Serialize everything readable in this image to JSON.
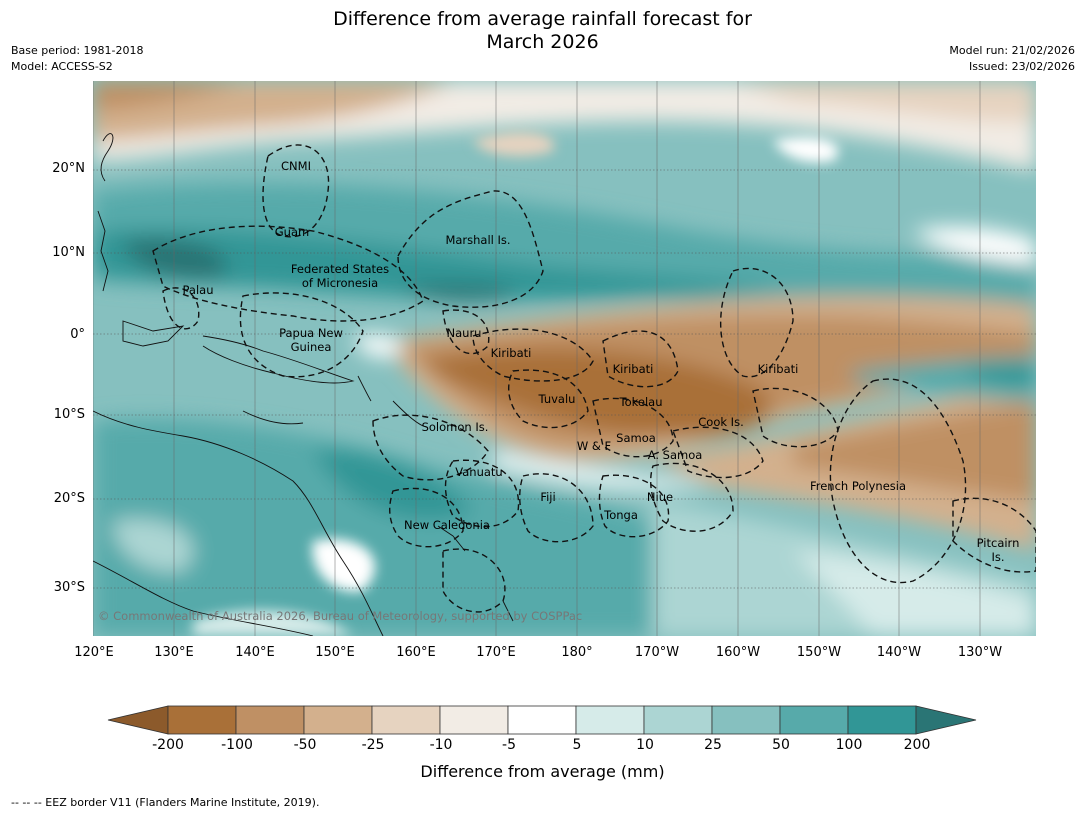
{
  "title_line1": "Difference from average rainfall forecast for",
  "title_line2": "March 2026",
  "meta_left": [
    "Base period: 1981-2018",
    "Model: ACCESS-S2"
  ],
  "meta_right": [
    "Model run: 21/02/2026",
    "Issued: 23/02/2026"
  ],
  "lat_labels": [
    "20°N",
    "10°N",
    "0°",
    "10°S",
    "20°S",
    "30°S"
  ],
  "lon_labels": [
    "120°E",
    "130°E",
    "140°E",
    "150°E",
    "160°E",
    "170°E",
    "180°",
    "170°W",
    "160°W",
    "150°W",
    "140°W",
    "130°W"
  ],
  "places": [
    "CNMI",
    "Guam",
    "Marshall Is.",
    "Federated States\nof Micronesia",
    "Palau",
    "Papua New\nGuinea",
    "Nauru",
    "Kiribati",
    "Kiribati",
    "Kiribati",
    "Tuvalu",
    "Tokelau",
    "Cook Is.",
    "Solomon Is.",
    "Samoa",
    "W & F",
    "A. Samoa",
    "Vanuatu",
    "Fiji",
    "Niue",
    "French Polynesia",
    "Tonga",
    "New Caledonia",
    "Pitcairn\nIs."
  ],
  "copyright": "© Commonwealth of Australia 2026, Bureau of Meteorology, supported by COSPPac",
  "colorbar": {
    "ticks": [
      "-200",
      "-100",
      "-50",
      "-25",
      "-10",
      "-5",
      "5",
      "10",
      "25",
      "50",
      "100",
      "200"
    ],
    "colors": [
      "#8c5a2b",
      "#a97038",
      "#bf9064",
      "#d3b08d",
      "#e6d3c0",
      "#f2ece5",
      "#ffffff",
      "#d6ebe9",
      "#acd5d3",
      "#86c0bf",
      "#57aaaa",
      "#319696",
      "#2a7575"
    ],
    "label": "Difference from average (mm)"
  },
  "footer": "--  --  -- EEZ border V11 (Flanders Marine Institute, 2019)."
}
